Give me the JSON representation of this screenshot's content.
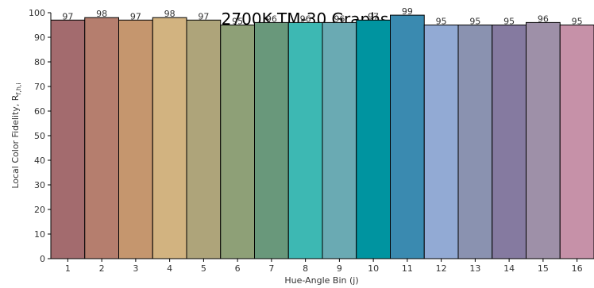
{
  "chart_data": {
    "type": "bar",
    "title": "2700K TM-30 Graphs",
    "xlabel": "Hue-Angle Bin (j)",
    "ylabel": "Local Color Fidelity, R",
    "ylabel_sub": "f,h,i",
    "ylim": [
      0,
      100
    ],
    "yticks": [
      0,
      10,
      20,
      30,
      40,
      50,
      60,
      70,
      80,
      90,
      100
    ],
    "grid": false,
    "categories": [
      "1",
      "2",
      "3",
      "4",
      "5",
      "6",
      "7",
      "8",
      "9",
      "10",
      "11",
      "12",
      "13",
      "14",
      "15",
      "16"
    ],
    "values": [
      97,
      98,
      97,
      98,
      97,
      95,
      96,
      96,
      96,
      97,
      99,
      95,
      95,
      95,
      96,
      95
    ],
    "colors": [
      "#a36b6e",
      "#b57e6e",
      "#c5966e",
      "#d2b380",
      "#aea47a",
      "#8ea077",
      "#69987b",
      "#3db8b3",
      "#6aaab3",
      "#0094a0",
      "#3a8ab0",
      "#92aad4",
      "#8a92b0",
      "#857aa0",
      "#9e90a8",
      "#c691a8"
    ]
  }
}
